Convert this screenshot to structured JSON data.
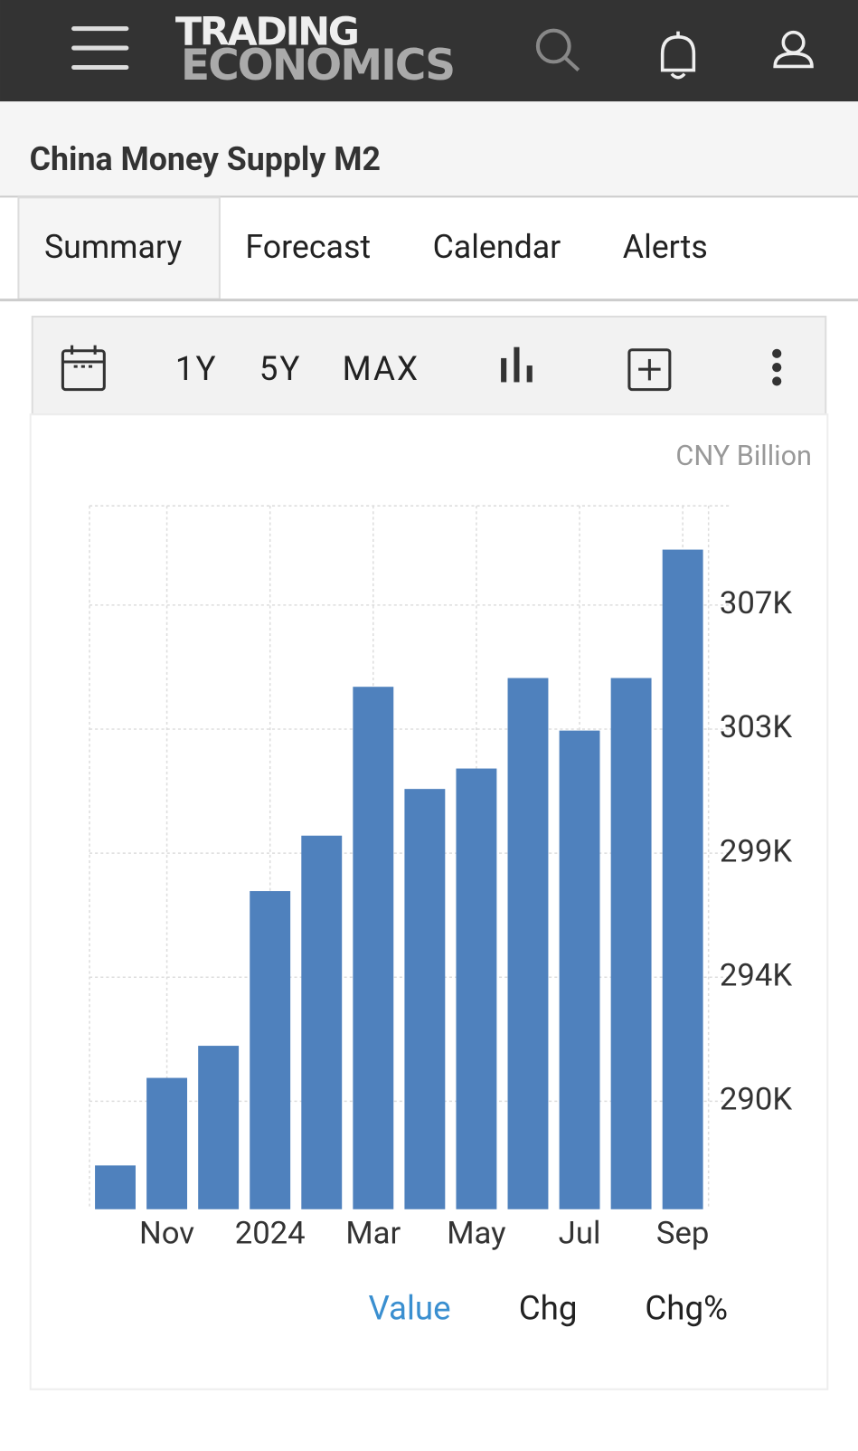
{
  "header": {
    "logo_top": "TRADING",
    "logo_bottom": "ECONOMICS"
  },
  "page": {
    "title": "China Money Supply M2"
  },
  "tabs": [
    "Summary",
    "Forecast",
    "Calendar",
    "Alerts"
  ],
  "toolbar": [
    "1Y",
    "5Y",
    "MAX"
  ],
  "chart_data": {
    "type": "bar",
    "ylabel": "CNY Billion",
    "categories": [
      null,
      "Nov",
      null,
      "2024",
      null,
      "Mar",
      null,
      "May",
      null,
      "Jul",
      null,
      "Sep"
    ],
    "values": [
      287800,
      290800,
      291900,
      297200,
      299100,
      304200,
      300700,
      301400,
      304500,
      302700,
      304500,
      308900
    ],
    "color": "#4f81bd",
    "ylim": [
      286300,
      310400
    ],
    "yticks": [
      {
        "value": 290000,
        "label": "290K"
      },
      {
        "value": 294250,
        "label": "294K"
      },
      {
        "value": 298500,
        "label": "299K"
      },
      {
        "value": 302750,
        "label": "303K"
      },
      {
        "value": 307000,
        "label": "307K"
      }
    ],
    "grid": true
  },
  "footer_tabs": [
    "Value",
    "Chg",
    "Chg%"
  ]
}
